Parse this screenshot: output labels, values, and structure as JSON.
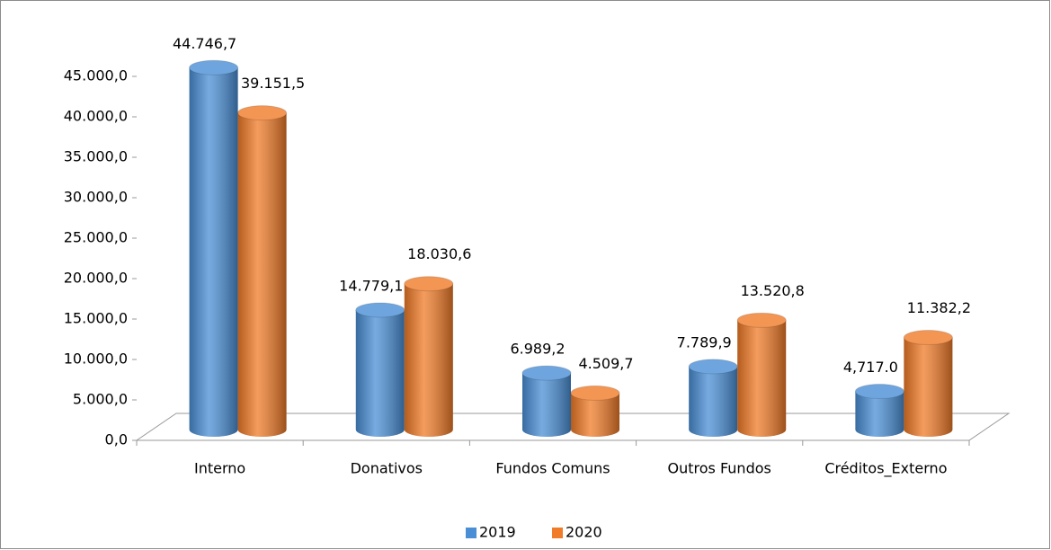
{
  "chart_data": {
    "type": "bar3d",
    "categories": [
      "Interno",
      "Donativos",
      "Fundos Comuns",
      "Outros Fundos",
      "Créditos_Externo"
    ],
    "series": [
      {
        "name": "2019",
        "color": "#4a8fd6",
        "values": [
          44746.7,
          14779.1,
          6989.2,
          7789.9,
          4717.0
        ],
        "value_labels": [
          "44.746,7",
          "14.779,1",
          "6.989,2",
          "7.789,9",
          "4,717.0"
        ]
      },
      {
        "name": "2020",
        "color": "#f07b28",
        "values": [
          39151.5,
          18030.6,
          4509.7,
          13520.8,
          11382.2
        ],
        "value_labels": [
          "39.151,5",
          "18.030,6",
          "4.509,7",
          "13.520,8",
          "11.382,2"
        ]
      }
    ],
    "ylim": [
      0,
      45000
    ],
    "yticks": [
      {
        "value": 0,
        "label": "0,0"
      },
      {
        "value": 5000,
        "label": "5.000,0"
      },
      {
        "value": 10000,
        "label": "10.000,0"
      },
      {
        "value": 15000,
        "label": "15.000,0"
      },
      {
        "value": 20000,
        "label": "20.000,0"
      },
      {
        "value": 25000,
        "label": "25.000,0"
      },
      {
        "value": 30000,
        "label": "30.000,0"
      },
      {
        "value": 35000,
        "label": "35.000,0"
      },
      {
        "value": 40000,
        "label": "40.000,0"
      },
      {
        "value": 45000,
        "label": "45.000,0"
      }
    ],
    "legend": "bottom",
    "grid": false
  }
}
